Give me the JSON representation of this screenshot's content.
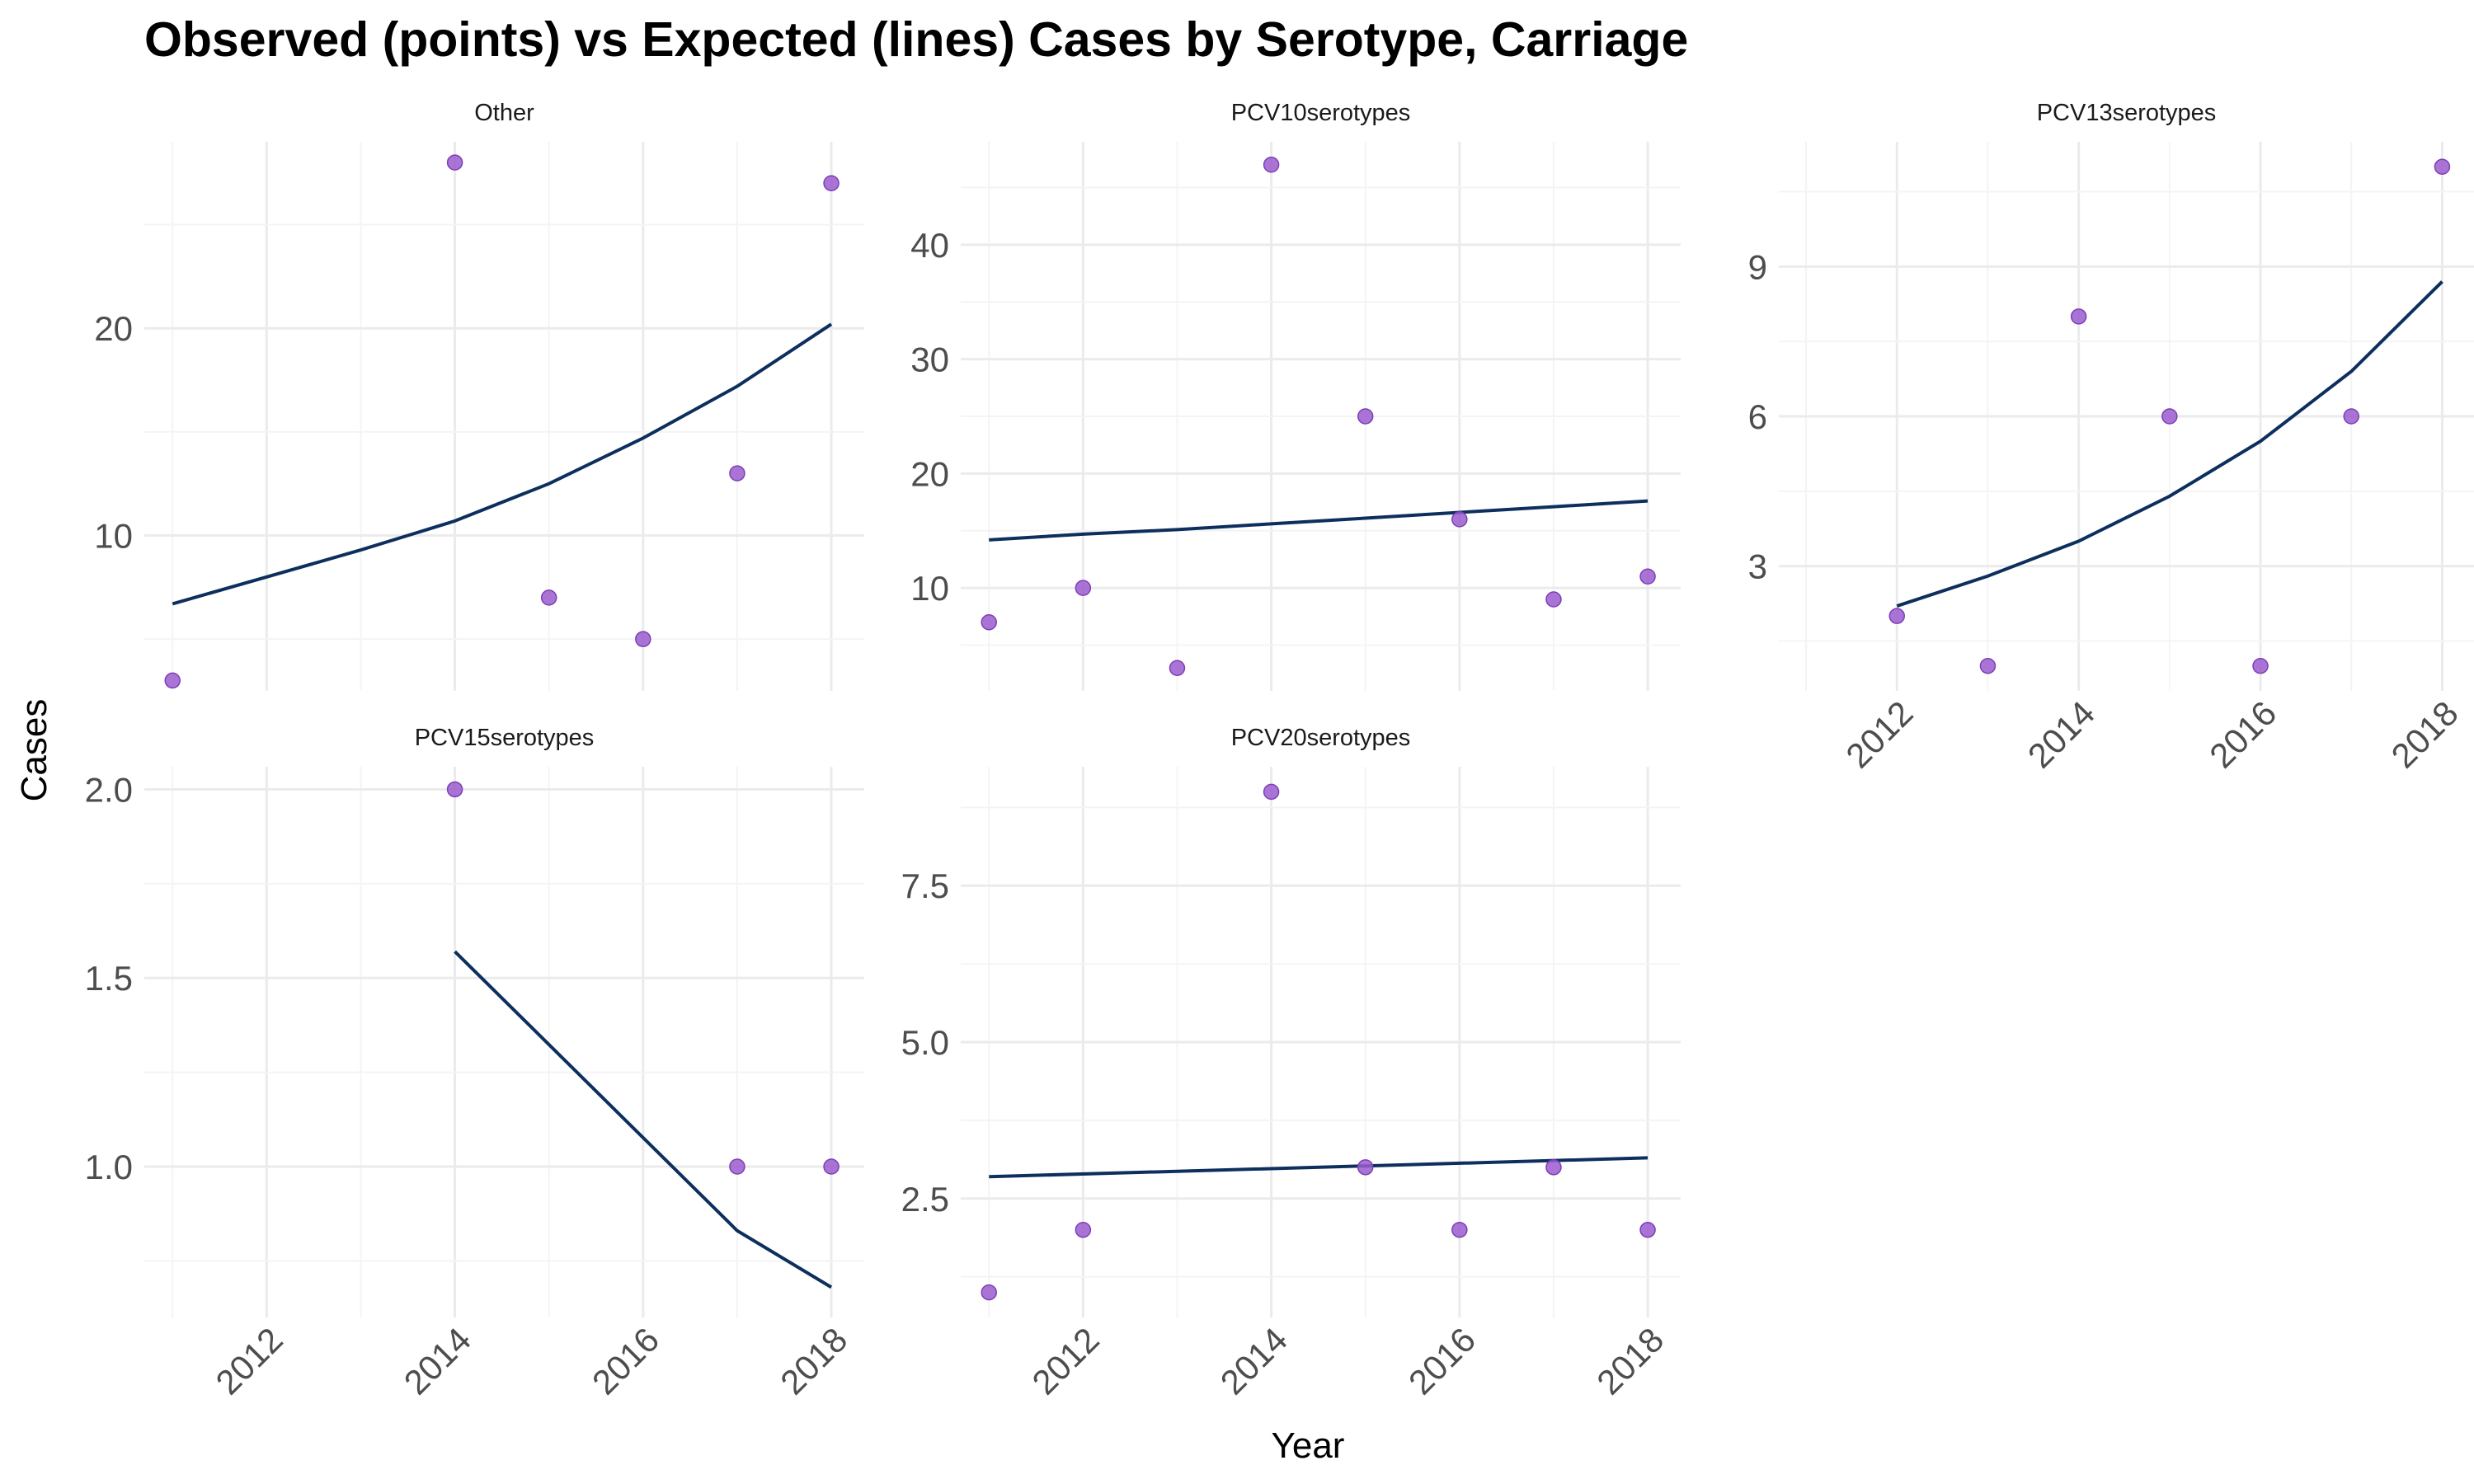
{
  "title": "Observed (points) vs Expected (lines) Cases by Serotype, Carriage",
  "xlabel": "Year",
  "ylabel": "Cases",
  "colors": {
    "observed": "#9a5ccf",
    "expected": "#0d2f5e",
    "grid_major": "#ebebeb",
    "grid_minor": "#f4f4f4"
  },
  "chart_data": [
    {
      "type": "scatter",
      "panel": "Other",
      "x_ticks": [
        "2012",
        "2014",
        "2016",
        "2018"
      ],
      "y_ticks": [
        "10",
        "20"
      ],
      "xlim": [
        2010.7,
        2018.35
      ],
      "ylim": [
        2.5,
        29.0
      ],
      "series": [
        {
          "kind": "points",
          "x": [
            2011,
            2014,
            2015,
            2016,
            2017,
            2018
          ],
          "y": [
            3,
            28,
            7,
            5,
            13,
            27
          ]
        },
        {
          "kind": "line",
          "x": [
            2011,
            2012,
            2013,
            2014,
            2015,
            2016,
            2017,
            2018
          ],
          "y": [
            6.7,
            8.0,
            9.3,
            10.7,
            12.5,
            14.7,
            17.2,
            20.2
          ]
        }
      ]
    },
    {
      "type": "scatter",
      "panel": "PCV10serotypes",
      "x_ticks": [
        "2012",
        "2014",
        "2016",
        "2018"
      ],
      "y_ticks": [
        "10",
        "20",
        "30",
        "40"
      ],
      "xlim": [
        2010.7,
        2018.35
      ],
      "ylim": [
        1.0,
        49.0
      ],
      "series": [
        {
          "kind": "points",
          "x": [
            2011,
            2012,
            2013,
            2014,
            2015,
            2016,
            2017,
            2018
          ],
          "y": [
            7,
            10,
            3,
            47,
            25,
            16,
            9,
            11
          ]
        },
        {
          "kind": "line",
          "x": [
            2011,
            2012,
            2013,
            2014,
            2015,
            2016,
            2017,
            2018
          ],
          "y": [
            14.2,
            14.7,
            15.1,
            15.6,
            16.1,
            16.6,
            17.1,
            17.6
          ]
        }
      ]
    },
    {
      "type": "scatter",
      "panel": "PCV13serotypes",
      "x_ticks": [
        "2012",
        "2014",
        "2016",
        "2018"
      ],
      "y_ticks": [
        "3",
        "6",
        "9"
      ],
      "xlim": [
        2010.7,
        2018.35
      ],
      "ylim": [
        0.5,
        11.5
      ],
      "series": [
        {
          "kind": "points",
          "x": [
            2012,
            2013,
            2014,
            2015,
            2016,
            2017,
            2018
          ],
          "y": [
            2,
            1,
            8,
            6,
            1,
            6,
            11
          ]
        },
        {
          "kind": "line",
          "x": [
            2012,
            2013,
            2014,
            2015,
            2016,
            2017,
            2018
          ],
          "y": [
            2.2,
            2.8,
            3.5,
            4.4,
            5.5,
            6.9,
            8.7
          ]
        }
      ]
    },
    {
      "type": "scatter",
      "panel": "PCV15serotypes",
      "x_ticks": [
        "2012",
        "2014",
        "2016",
        "2018"
      ],
      "y_ticks": [
        "1.0",
        "1.5",
        "2.0"
      ],
      "xlim": [
        2010.7,
        2018.35
      ],
      "ylim": [
        0.6,
        2.06
      ],
      "series": [
        {
          "kind": "points",
          "x": [
            2014,
            2017,
            2018
          ],
          "y": [
            2,
            1,
            1
          ]
        },
        {
          "kind": "line",
          "x": [
            2014,
            2017,
            2018
          ],
          "y": [
            1.57,
            0.83,
            0.68
          ]
        }
      ]
    },
    {
      "type": "scatter",
      "panel": "PCV20serotypes",
      "x_ticks": [
        "2012",
        "2014",
        "2016",
        "2018"
      ],
      "y_ticks": [
        "2.5",
        "5.0",
        "7.5"
      ],
      "xlim": [
        2010.7,
        2018.35
      ],
      "ylim": [
        0.6,
        9.4
      ],
      "series": [
        {
          "kind": "points",
          "x": [
            2011,
            2012,
            2014,
            2015,
            2016,
            2017,
            2018
          ],
          "y": [
            1,
            2,
            9,
            3,
            2,
            3,
            2
          ]
        },
        {
          "kind": "line",
          "x": [
            2011,
            2018
          ],
          "y": [
            2.85,
            3.15
          ]
        }
      ]
    }
  ]
}
